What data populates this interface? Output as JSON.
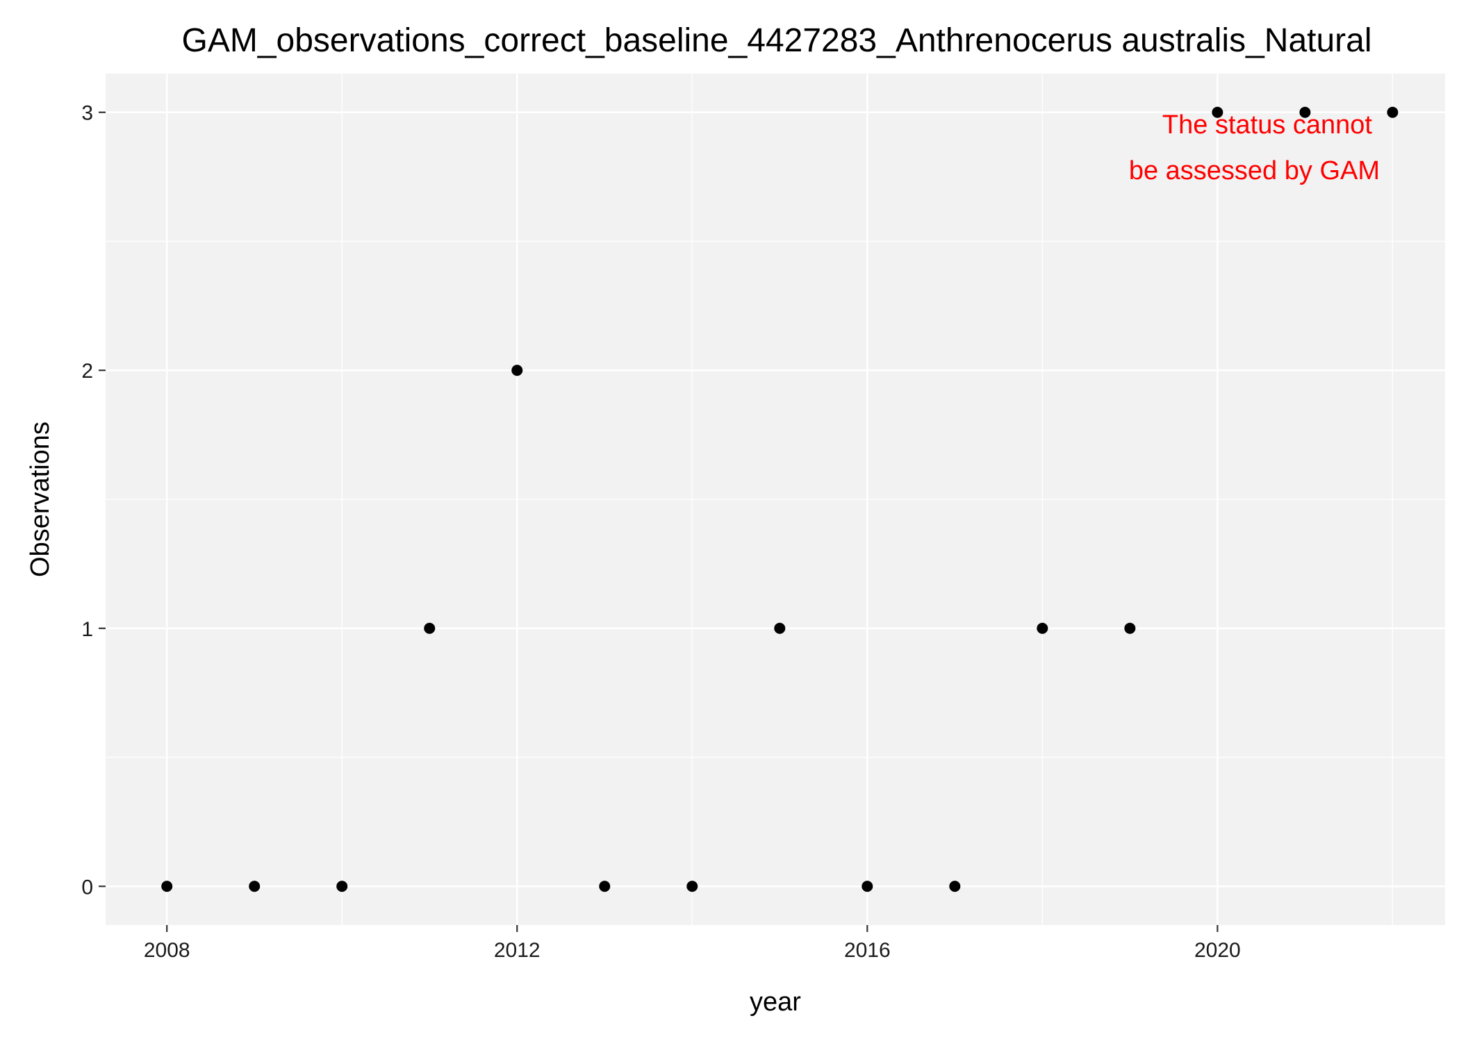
{
  "chart_data": {
    "type": "scatter",
    "title": "GAM_observations_correct_baseline_4427283_Anthrenocerus australis_Natural",
    "xlabel": "year",
    "ylabel": "Observations",
    "xlim": [
      2007.3,
      2022.6
    ],
    "ylim": [
      -0.15,
      3.15
    ],
    "x_ticks": [
      2008,
      2012,
      2016,
      2020
    ],
    "x_tick_labels": [
      "2008",
      "2012",
      "2016",
      "2020"
    ],
    "y_ticks": [
      0,
      1,
      2,
      3
    ],
    "y_tick_labels": [
      "0",
      "1",
      "2",
      "3"
    ],
    "grid": true,
    "legend": "none",
    "annotation": [
      "The status cannot",
      "be assessed by GAM"
    ],
    "x": [
      2008,
      2009,
      2010,
      2011,
      2012,
      2013,
      2014,
      2015,
      2016,
      2017,
      2018,
      2019,
      2020,
      2021,
      2022
    ],
    "y": [
      0,
      0,
      0,
      1,
      2,
      0,
      0,
      1,
      0,
      0,
      1,
      1,
      3,
      3,
      3
    ],
    "colors": {
      "panel": "#f2f2f2",
      "grid": "#ffffff",
      "point": "#000000",
      "annotation": "#ff0000"
    }
  }
}
